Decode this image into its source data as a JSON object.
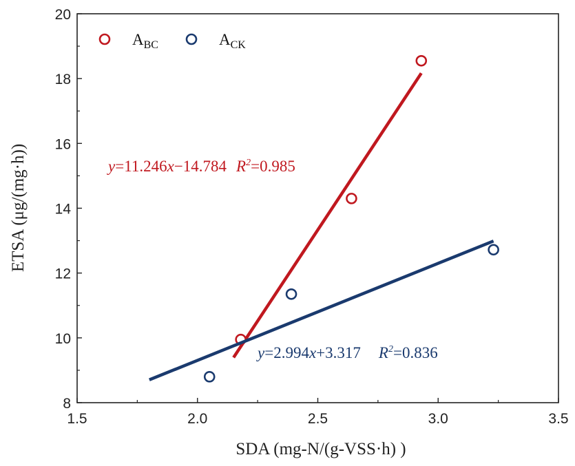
{
  "chart_data": {
    "type": "scatter",
    "xlabel": "SDA (mg-N/(g-VSS·h) )",
    "ylabel": "ETSA (μg/(mg·h))",
    "xlim": [
      1.5,
      3.5
    ],
    "ylim": [
      8,
      20
    ],
    "x_ticks": [
      "1.5",
      "2.0",
      "2.5",
      "3.0",
      "3.5"
    ],
    "y_ticks": [
      "8",
      "10",
      "12",
      "14",
      "16",
      "18",
      "20"
    ],
    "grid": false,
    "legend_position": "top-left",
    "series": [
      {
        "name": "A_BC",
        "label_main": "A",
        "label_sub": "BC",
        "color": "#c0181f",
        "marker": "open-circle",
        "points": [
          {
            "x": 2.18,
            "y": 9.95
          },
          {
            "x": 2.64,
            "y": 14.3
          },
          {
            "x": 2.93,
            "y": 18.55
          }
        ],
        "fit": {
          "slope": 11.246,
          "intercept": -14.784,
          "x_range": [
            2.15,
            2.93
          ],
          "equation": {
            "y": "y",
            "coef": "=11.246",
            "x": "x",
            "const": "−14.784",
            "r": "R",
            "sup": "2",
            "rval": "=0.985"
          }
        }
      },
      {
        "name": "A_CK",
        "label_main": "A",
        "label_sub": "CK",
        "color": "#1a3a6e",
        "marker": "open-circle",
        "points": [
          {
            "x": 2.05,
            "y": 8.8
          },
          {
            "x": 2.39,
            "y": 11.35
          },
          {
            "x": 3.23,
            "y": 12.72
          }
        ],
        "fit": {
          "slope": 2.994,
          "intercept": 3.317,
          "x_range": [
            1.8,
            3.23
          ],
          "equation": {
            "y": "y",
            "coef": "=2.994",
            "x": "x",
            "const": "+3.317",
            "r": "R",
            "sup": "2",
            "rval": "=0.836"
          }
        }
      }
    ]
  }
}
